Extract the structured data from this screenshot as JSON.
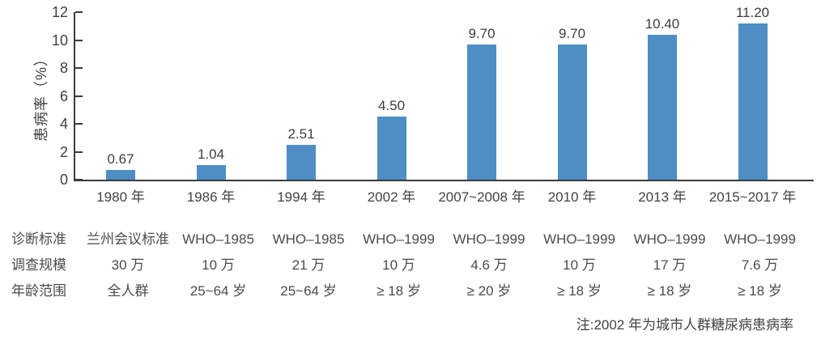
{
  "chart_data": {
    "type": "bar",
    "title": "",
    "ylabel": "患病率（%）",
    "xlabel": "",
    "categories": [
      "1980 年",
      "1986 年",
      "1994 年",
      "2002 年",
      "2007~2008 年",
      "2010 年",
      "2013 年",
      "2015~2017 年"
    ],
    "values": [
      0.67,
      1.04,
      2.51,
      4.5,
      9.7,
      9.7,
      10.4,
      11.2
    ],
    "value_labels": [
      "0.67",
      "1.04",
      "2.51",
      "4.50",
      "9.70",
      "9.70",
      "10.40",
      "11.20"
    ],
    "ylim": [
      0,
      12
    ],
    "yticks": [
      "0",
      "2",
      "4",
      "6",
      "8",
      "10",
      "12"
    ],
    "bar_color": "#4e8ec5",
    "grid": false,
    "legend": false
  },
  "table": {
    "rows": [
      {
        "header": "诊断标准",
        "cells": [
          "兰州会议标准",
          "WHO–1985",
          "WHO–1985",
          "WHO–1999",
          "WHO–1999",
          "WHO–1999",
          "WHO–1999",
          "WHO–1999"
        ]
      },
      {
        "header": "调查规模",
        "cells": [
          "30 万",
          "10 万",
          "21 万",
          "10 万",
          "4.6 万",
          "10 万",
          "17 万",
          "7.6 万"
        ]
      },
      {
        "header": "年龄范围",
        "cells": [
          "全人群",
          "25~64 岁",
          "25~64 岁",
          "≥ 18 岁",
          "≥ 20 岁",
          "≥ 18 岁",
          "≥ 18 岁",
          "≥ 18 岁"
        ]
      }
    ]
  },
  "note": "注:2002 年为城市人群糖尿病患病率"
}
